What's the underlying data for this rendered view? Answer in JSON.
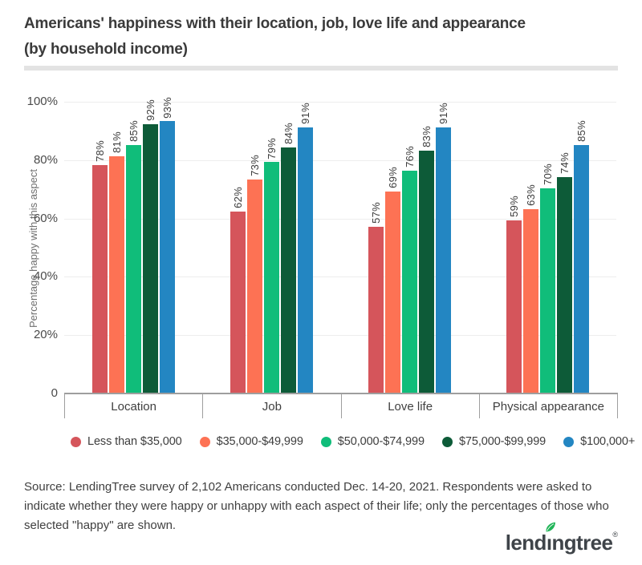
{
  "header": {
    "title_line1": "Americans' happiness with their location, job, love life and appearance",
    "title_line2": "(by household income)"
  },
  "chart_data": {
    "type": "bar",
    "categories": [
      "Location",
      "Job",
      "Love life",
      "Physical appearance"
    ],
    "series": [
      {
        "name": "Less than $35,000",
        "color": "#d5555b",
        "values": [
          78,
          62,
          57,
          59
        ]
      },
      {
        "name": "$35,000-$49,999",
        "color": "#fd7254",
        "values": [
          81,
          73,
          69,
          63
        ]
      },
      {
        "name": "$50,000-$74,999",
        "color": "#10bd7a",
        "values": [
          85,
          79,
          76,
          70
        ]
      },
      {
        "name": "$75,000-$99,999",
        "color": "#0d5b38",
        "values": [
          92,
          84,
          83,
          74
        ]
      },
      {
        "name": "$100,000+",
        "color": "#2386c2",
        "values": [
          93,
          91,
          91,
          85
        ]
      }
    ],
    "bar_labels": [
      "78%",
      "81%",
      "85%",
      "92%",
      "93%",
      "62%",
      "73%",
      "79%",
      "84%",
      "91%",
      "57%",
      "69%",
      "76%",
      "83%",
      "91%",
      "59%",
      "63%",
      "70%",
      "74%",
      "85%"
    ],
    "ylabel": "Percentage happy with this aspect",
    "xlabel": "",
    "y_ticks": [
      {
        "label": "100%",
        "value": 100
      },
      {
        "label": "80%",
        "value": 80
      },
      {
        "label": "60%",
        "value": 60
      },
      {
        "label": "40%",
        "value": 40
      },
      {
        "label": "20%",
        "value": 20
      },
      {
        "label": "0",
        "value": 0
      }
    ],
    "ylim": [
      0,
      100
    ],
    "grid": true,
    "legend_position": "bottom"
  },
  "footer": {
    "source_text": "Source: LendingTree survey of 2,102 Americans conducted Dec. 14-20, 2021. Respondents were asked to indicate whether they were happy or unhappy with each aspect of their life; only the percentages of those who selected \"happy\" are shown."
  },
  "logo": {
    "pre": "lend",
    "dotless_i": "ı",
    "post": "ngtree",
    "registered": "®",
    "leaf_color": "#21b558"
  }
}
